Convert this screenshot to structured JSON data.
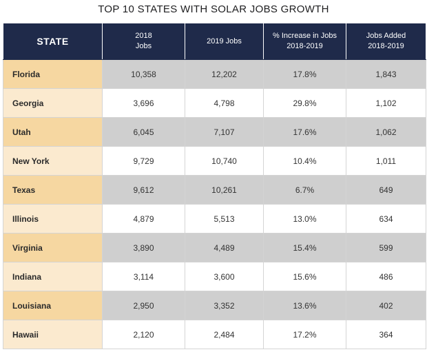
{
  "chart_data": {
    "type": "table",
    "title": "TOP 10 STATES WITH SOLAR JOBS GROWTH",
    "columns": [
      {
        "label_lines": [
          "STATE"
        ]
      },
      {
        "label_lines": [
          "2018",
          "Jobs"
        ]
      },
      {
        "label_lines": [
          "2019 Jobs"
        ]
      },
      {
        "label_lines": [
          "% Increase in Jobs",
          "2018-2019"
        ]
      },
      {
        "label_lines": [
          "Jobs Added",
          "2018-2019"
        ]
      }
    ],
    "rows": [
      {
        "state": "Florida",
        "jobs_2018": "10,358",
        "jobs_2019": "12,202",
        "pct_increase": "17.8%",
        "jobs_added": "1,843"
      },
      {
        "state": "Georgia",
        "jobs_2018": "3,696",
        "jobs_2019": "4,798",
        "pct_increase": "29.8%",
        "jobs_added": "1,102"
      },
      {
        "state": "Utah",
        "jobs_2018": "6,045",
        "jobs_2019": "7,107",
        "pct_increase": "17.6%",
        "jobs_added": "1,062"
      },
      {
        "state": "New York",
        "jobs_2018": "9,729",
        "jobs_2019": "10,740",
        "pct_increase": "10.4%",
        "jobs_added": "1,011"
      },
      {
        "state": "Texas",
        "jobs_2018": "9,612",
        "jobs_2019": "10,261",
        "pct_increase": "6.7%",
        "jobs_added": "649"
      },
      {
        "state": "Illinois",
        "jobs_2018": "4,879",
        "jobs_2019": "5,513",
        "pct_increase": "13.0%",
        "jobs_added": "634"
      },
      {
        "state": "Virginia",
        "jobs_2018": "3,890",
        "jobs_2019": "4,489",
        "pct_increase": "15.4%",
        "jobs_added": "599"
      },
      {
        "state": "Indiana",
        "jobs_2018": "3,114",
        "jobs_2019": "3,600",
        "pct_increase": "15.6%",
        "jobs_added": "486"
      },
      {
        "state": "Louisiana",
        "jobs_2018": "2,950",
        "jobs_2019": "3,352",
        "pct_increase": "13.6%",
        "jobs_added": "402"
      },
      {
        "state": "Hawaii",
        "jobs_2018": "2,120",
        "jobs_2019": "2,484",
        "pct_increase": "17.2%",
        "jobs_added": "364"
      }
    ]
  },
  "colors": {
    "header_bg": "#1f2a4a",
    "state_odd": "#f6d7a1",
    "state_even": "#fbeacf",
    "data_odd": "#cfcfcf",
    "data_even": "#ffffff"
  }
}
